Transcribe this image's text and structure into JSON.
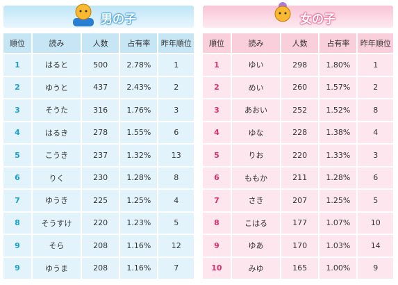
{
  "boys": {
    "title": "男の子",
    "columns": [
      "順位",
      "読み",
      "人数",
      "占有率",
      "昨年順位"
    ],
    "rows": [
      [
        1,
        "はると",
        500,
        "2.78%",
        1
      ],
      [
        2,
        "ゆうと",
        437,
        "2.43%",
        2
      ],
      [
        3,
        "そうた",
        316,
        "1.76%",
        3
      ],
      [
        4,
        "はるき",
        278,
        "1.55%",
        6
      ],
      [
        5,
        "こうき",
        237,
        "1.32%",
        13
      ],
      [
        6,
        "りく",
        230,
        "1.28%",
        8
      ],
      [
        7,
        "ゆうき",
        225,
        "1.25%",
        4
      ],
      [
        8,
        "そうすけ",
        220,
        "1.23%",
        5
      ],
      [
        9,
        "そら",
        208,
        "1.16%",
        12
      ],
      [
        9,
        "ゆうま",
        208,
        "1.16%",
        7
      ]
    ]
  },
  "girls": {
    "title": "女の子",
    "columns": [
      "順位",
      "読み",
      "人数",
      "占有率",
      "昨年順位"
    ],
    "rows": [
      [
        1,
        "ゆい",
        298,
        "1.80%",
        1
      ],
      [
        2,
        "めい",
        260,
        "1.57%",
        2
      ],
      [
        3,
        "あおい",
        252,
        "1.52%",
        8
      ],
      [
        4,
        "ゆな",
        228,
        "1.38%",
        4
      ],
      [
        5,
        "りお",
        220,
        "1.33%",
        3
      ],
      [
        6,
        "ももか",
        211,
        "1.28%",
        6
      ],
      [
        7,
        "さき",
        207,
        "1.25%",
        5
      ],
      [
        8,
        "こはる",
        177,
        "1.07%",
        10
      ],
      [
        9,
        "ゆあ",
        170,
        "1.03%",
        14
      ],
      [
        10,
        "みゆ",
        165,
        "1.00%",
        9
      ]
    ]
  }
}
